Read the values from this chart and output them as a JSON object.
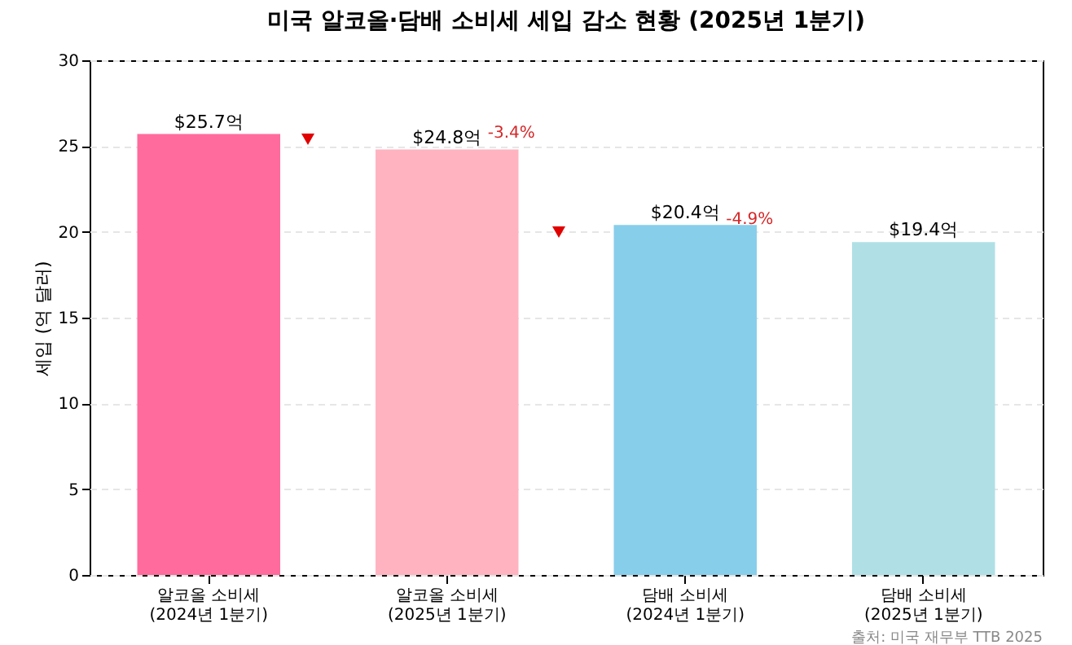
{
  "chart_data": {
    "type": "bar",
    "title": "미국 알코올·담배 소비세 세입 감소 현황 (2025년 1분기)",
    "ylabel": "세입 (억 달러)",
    "categories": [
      "알코올 소비세\n(2024년 1분기)",
      "알코올 소비세\n(2025년 1분기)",
      "담배 소비세\n(2024년 1분기)",
      "담배 소비세\n(2025년 1분기)"
    ],
    "values": [
      25.7,
      24.8,
      20.4,
      19.4
    ],
    "colors": [
      "#ff6b9d",
      "#ffb3c1",
      "#87ceeb",
      "#b0e0e6"
    ],
    "value_labels": [
      "$25.7억",
      "$24.8억",
      "$20.4억",
      "$19.4억"
    ],
    "ylim": [
      0,
      30
    ],
    "yticks": [
      0,
      5,
      10,
      15,
      20,
      25,
      30
    ],
    "grid": "y",
    "annotations": [
      {
        "text": "-3.4%",
        "x": "알코올 소비세\n(2025년 1분기)",
        "y": 25
      },
      {
        "text": "-4.9%",
        "x": "담배 소비세\n(2024년 1분기)",
        "y": 20
      },
      "출처: 미국 재무부 TTB 2025"
    ]
  }
}
